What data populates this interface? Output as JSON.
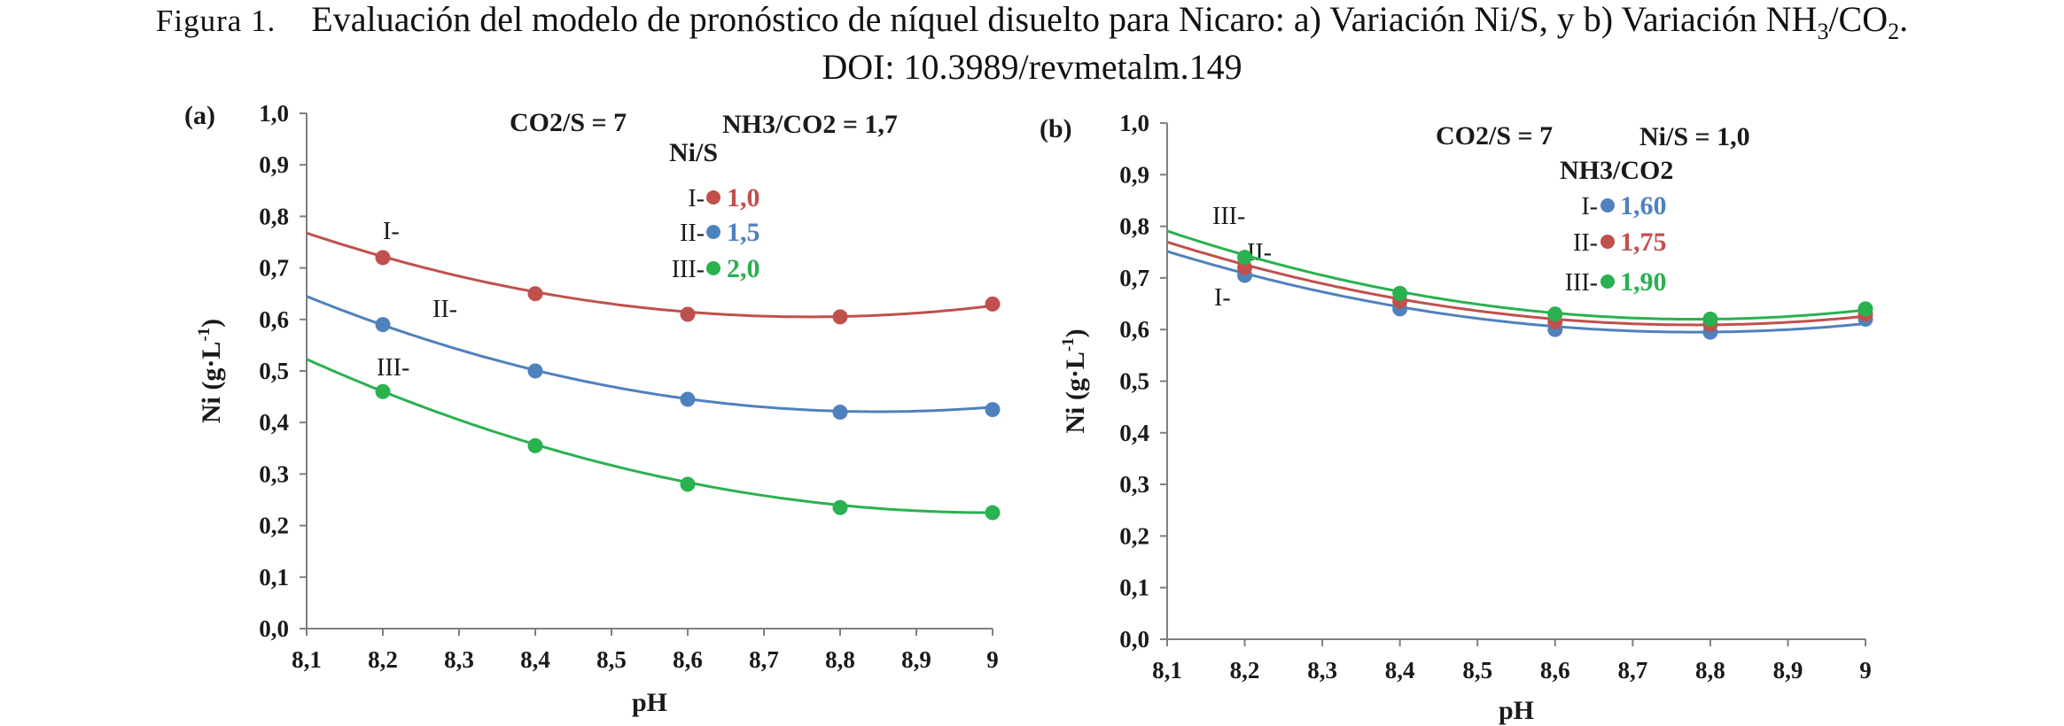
{
  "caption": {
    "figure_label": "Figura 1.",
    "text": "Evaluación del modelo de pronóstico de níquel disuelto para Nicaro: a) Variación Ni/S, y b) Variación NH3/CO2.",
    "doi": "DOI: 10.3989/revmetalm.149"
  },
  "chart_data": [
    {
      "type": "line",
      "panel_label": "(a)",
      "xlabel": "pH",
      "ylabel": "Ni (g·L-1)",
      "xlim": [
        8.1,
        9.0
      ],
      "ylim": [
        0.0,
        1.0
      ],
      "x_ticks": [
        "8,1",
        "8,2",
        "8,3",
        "8,4",
        "8,5",
        "8,6",
        "8,7",
        "8,8",
        "8,9",
        "9"
      ],
      "y_ticks": [
        "0,0",
        "0,1",
        "0,2",
        "0,3",
        "0,4",
        "0,5",
        "0,6",
        "0,7",
        "0,8",
        "0,9",
        "1,0"
      ],
      "annotations": [
        "CO2/S = 7",
        "NH3/CO2 = 1,7"
      ],
      "legend": {
        "title": "Ni/S",
        "entries": [
          {
            "prefix": "I-",
            "value": "1,0",
            "color": "#c0504d"
          },
          {
            "prefix": "II-",
            "value": "1,5",
            "color": "#4f81bd"
          },
          {
            "prefix": "III-",
            "value": "2,0",
            "color": "#2ab150"
          }
        ]
      },
      "series": [
        {
          "label": "I-",
          "color": "#c0504d",
          "x": [
            8.1,
            8.2,
            8.4,
            8.6,
            8.8,
            9.0
          ],
          "y": [
            0.77,
            0.72,
            0.65,
            0.61,
            0.605,
            0.63
          ]
        },
        {
          "label": "II-",
          "color": "#4f81bd",
          "x": [
            8.1,
            8.2,
            8.4,
            8.6,
            8.8,
            9.0
          ],
          "y": [
            0.645,
            0.59,
            0.5,
            0.445,
            0.42,
            0.425
          ]
        },
        {
          "label": "III-",
          "color": "#2ab150",
          "x": [
            8.1,
            8.2,
            8.4,
            8.6,
            8.8,
            9.0
          ],
          "y": [
            0.525,
            0.46,
            0.355,
            0.28,
            0.235,
            0.225
          ]
        }
      ]
    },
    {
      "type": "line",
      "panel_label": "(b)",
      "xlabel": "pH",
      "ylabel": "Ni (g·L-1)",
      "xlim": [
        8.1,
        9.0
      ],
      "ylim": [
        0.0,
        1.0
      ],
      "x_ticks": [
        "8,1",
        "8,2",
        "8,3",
        "8,4",
        "8,5",
        "8,6",
        "8,7",
        "8,8",
        "8,9",
        "9"
      ],
      "y_ticks": [
        "0,0",
        "0,1",
        "0,2",
        "0,3",
        "0,4",
        "0,5",
        "0,6",
        "0,7",
        "0,8",
        "0,9",
        "1,0"
      ],
      "annotations": [
        "CO2/S = 7",
        "Ni/S = 1,0"
      ],
      "legend": {
        "title": "NH3/CO2",
        "entries": [
          {
            "prefix": "I-",
            "value": "1,60",
            "color": "#4f81bd"
          },
          {
            "prefix": "II-",
            "value": "1,75",
            "color": "#c0504d"
          },
          {
            "prefix": "III-",
            "value": "1,90",
            "color": "#2ab150"
          }
        ]
      },
      "series": [
        {
          "label": "I-",
          "color": "#4f81bd",
          "x": [
            8.1,
            8.2,
            8.4,
            8.6,
            8.8,
            9.0
          ],
          "y": [
            0.755,
            0.705,
            0.64,
            0.6,
            0.595,
            0.62
          ]
        },
        {
          "label": "II-",
          "color": "#c0504d",
          "x": [
            8.1,
            8.2,
            8.4,
            8.6,
            8.8,
            9.0
          ],
          "y": [
            0.775,
            0.72,
            0.655,
            0.615,
            0.61,
            0.63
          ]
        },
        {
          "label": "III-",
          "color": "#2ab150",
          "x": [
            8.1,
            8.2,
            8.4,
            8.6,
            8.8,
            9.0
          ],
          "y": [
            0.795,
            0.74,
            0.67,
            0.63,
            0.62,
            0.64
          ]
        }
      ]
    }
  ]
}
